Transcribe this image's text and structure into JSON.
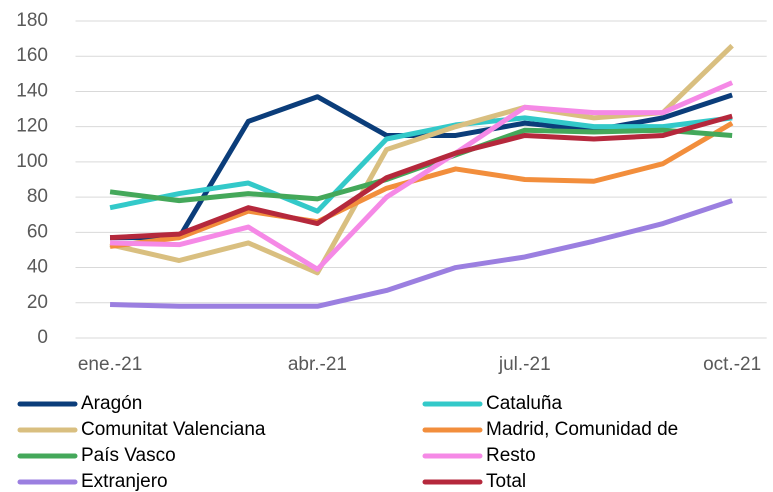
{
  "chart_data": {
    "type": "line",
    "categories": [
      "ene.-21",
      null,
      null,
      "abr.-21",
      null,
      null,
      "jul.-21",
      null,
      null,
      "oct.-21"
    ],
    "series": [
      {
        "name": "Aragón",
        "color": "#0b3d7a",
        "values": [
          57,
          57,
          123,
          137,
          115,
          115,
          122,
          118,
          125,
          138
        ]
      },
      {
        "name": "Cataluña",
        "color": "#33c9c9",
        "values": [
          74,
          82,
          88,
          72,
          113,
          121,
          125,
          120,
          120,
          125
        ]
      },
      {
        "name": "Comunitat Valenciana",
        "color": "#d9bf80",
        "values": [
          53,
          44,
          54,
          37,
          107,
          120,
          131,
          125,
          128,
          166
        ]
      },
      {
        "name": "Madrid, Comunidad de",
        "color": "#f28e3c",
        "values": [
          52,
          57,
          72,
          66,
          85,
          96,
          90,
          89,
          99,
          122
        ]
      },
      {
        "name": "País Vasco",
        "color": "#44a85a",
        "values": [
          83,
          78,
          82,
          79,
          90,
          104,
          118,
          117,
          118,
          115
        ]
      },
      {
        "name": "Resto",
        "color": "#f589e6",
        "values": [
          54,
          53,
          63,
          39,
          80,
          105,
          131,
          128,
          128,
          145
        ]
      },
      {
        "name": "Extranjero",
        "color": "#9b7fe0",
        "values": [
          19,
          18,
          18,
          18,
          27,
          40,
          46,
          55,
          65,
          78
        ]
      },
      {
        "name": "Total",
        "color": "#b5283c",
        "values": [
          57,
          59,
          74,
          65,
          91,
          105,
          115,
          113,
          115,
          126
        ]
      }
    ],
    "ylim": [
      0,
      180
    ],
    "yticks": [
      0,
      20,
      40,
      60,
      80,
      100,
      120,
      140,
      160,
      180
    ],
    "grid": true,
    "legend": "bottom"
  }
}
